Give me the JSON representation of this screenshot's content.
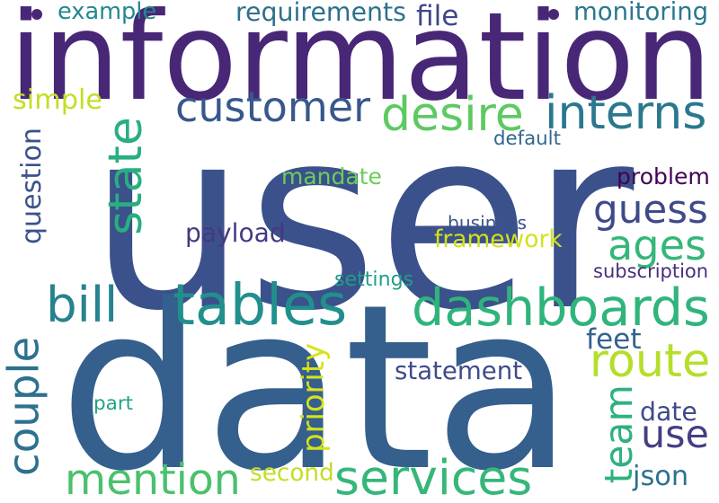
{
  "words": [
    {
      "text": "user",
      "color": "#3b518b"
    },
    {
      "text": "data",
      "color": "#355f8d"
    },
    {
      "text": "information",
      "color": "#482777"
    },
    {
      "text": "customer",
      "color": "#38588c"
    },
    {
      "text": "desire",
      "color": "#5ec962"
    },
    {
      "text": "interns",
      "color": "#2a788e"
    },
    {
      "text": "state",
      "color": "#29af7f"
    },
    {
      "text": "guess",
      "color": "#3e4a89"
    },
    {
      "text": "ages",
      "color": "#35b779"
    },
    {
      "text": "tables",
      "color": "#21908d"
    },
    {
      "text": "dashboards",
      "color": "#2fb47c"
    },
    {
      "text": "bill",
      "color": "#26828e"
    },
    {
      "text": "couple",
      "color": "#2c718e"
    },
    {
      "text": "route",
      "color": "#b5de2b"
    },
    {
      "text": "use",
      "color": "#433e85"
    },
    {
      "text": "mention",
      "color": "#4ac16d"
    },
    {
      "text": "services",
      "color": "#35b779"
    },
    {
      "text": "team",
      "color": "#2db27d"
    },
    {
      "text": "example",
      "color": "#23888e"
    },
    {
      "text": "requirements",
      "color": "#2d708e"
    },
    {
      "text": "file",
      "color": "#404688"
    },
    {
      "text": "monitoring",
      "color": "#2a788e"
    },
    {
      "text": "simple",
      "color": "#c2df23"
    },
    {
      "text": "question",
      "color": "#3b528b"
    },
    {
      "text": "default",
      "color": "#31668e"
    },
    {
      "text": "mandate",
      "color": "#6ccd5a"
    },
    {
      "text": "problem",
      "color": "#440154"
    },
    {
      "text": "payload",
      "color": "#443983"
    },
    {
      "text": "framework",
      "color": "#d2e21b"
    },
    {
      "text": "business",
      "color": "#3b528b"
    },
    {
      "text": "subscription",
      "color": "#472f7d"
    },
    {
      "text": "settings",
      "color": "#1f9e89"
    },
    {
      "text": "priority",
      "color": "#d8e219"
    },
    {
      "text": "feet",
      "color": "#33638d"
    },
    {
      "text": "statement",
      "color": "#3e4c8a"
    },
    {
      "text": "date",
      "color": "#3e4a89"
    },
    {
      "text": "part",
      "color": "#20a486"
    },
    {
      "text": "second",
      "color": "#c2df23"
    },
    {
      "text": "json",
      "color": "#2c718e"
    }
  ],
  "dots": [
    {
      "color": "#482777"
    },
    {
      "color": "#482777"
    }
  ]
}
